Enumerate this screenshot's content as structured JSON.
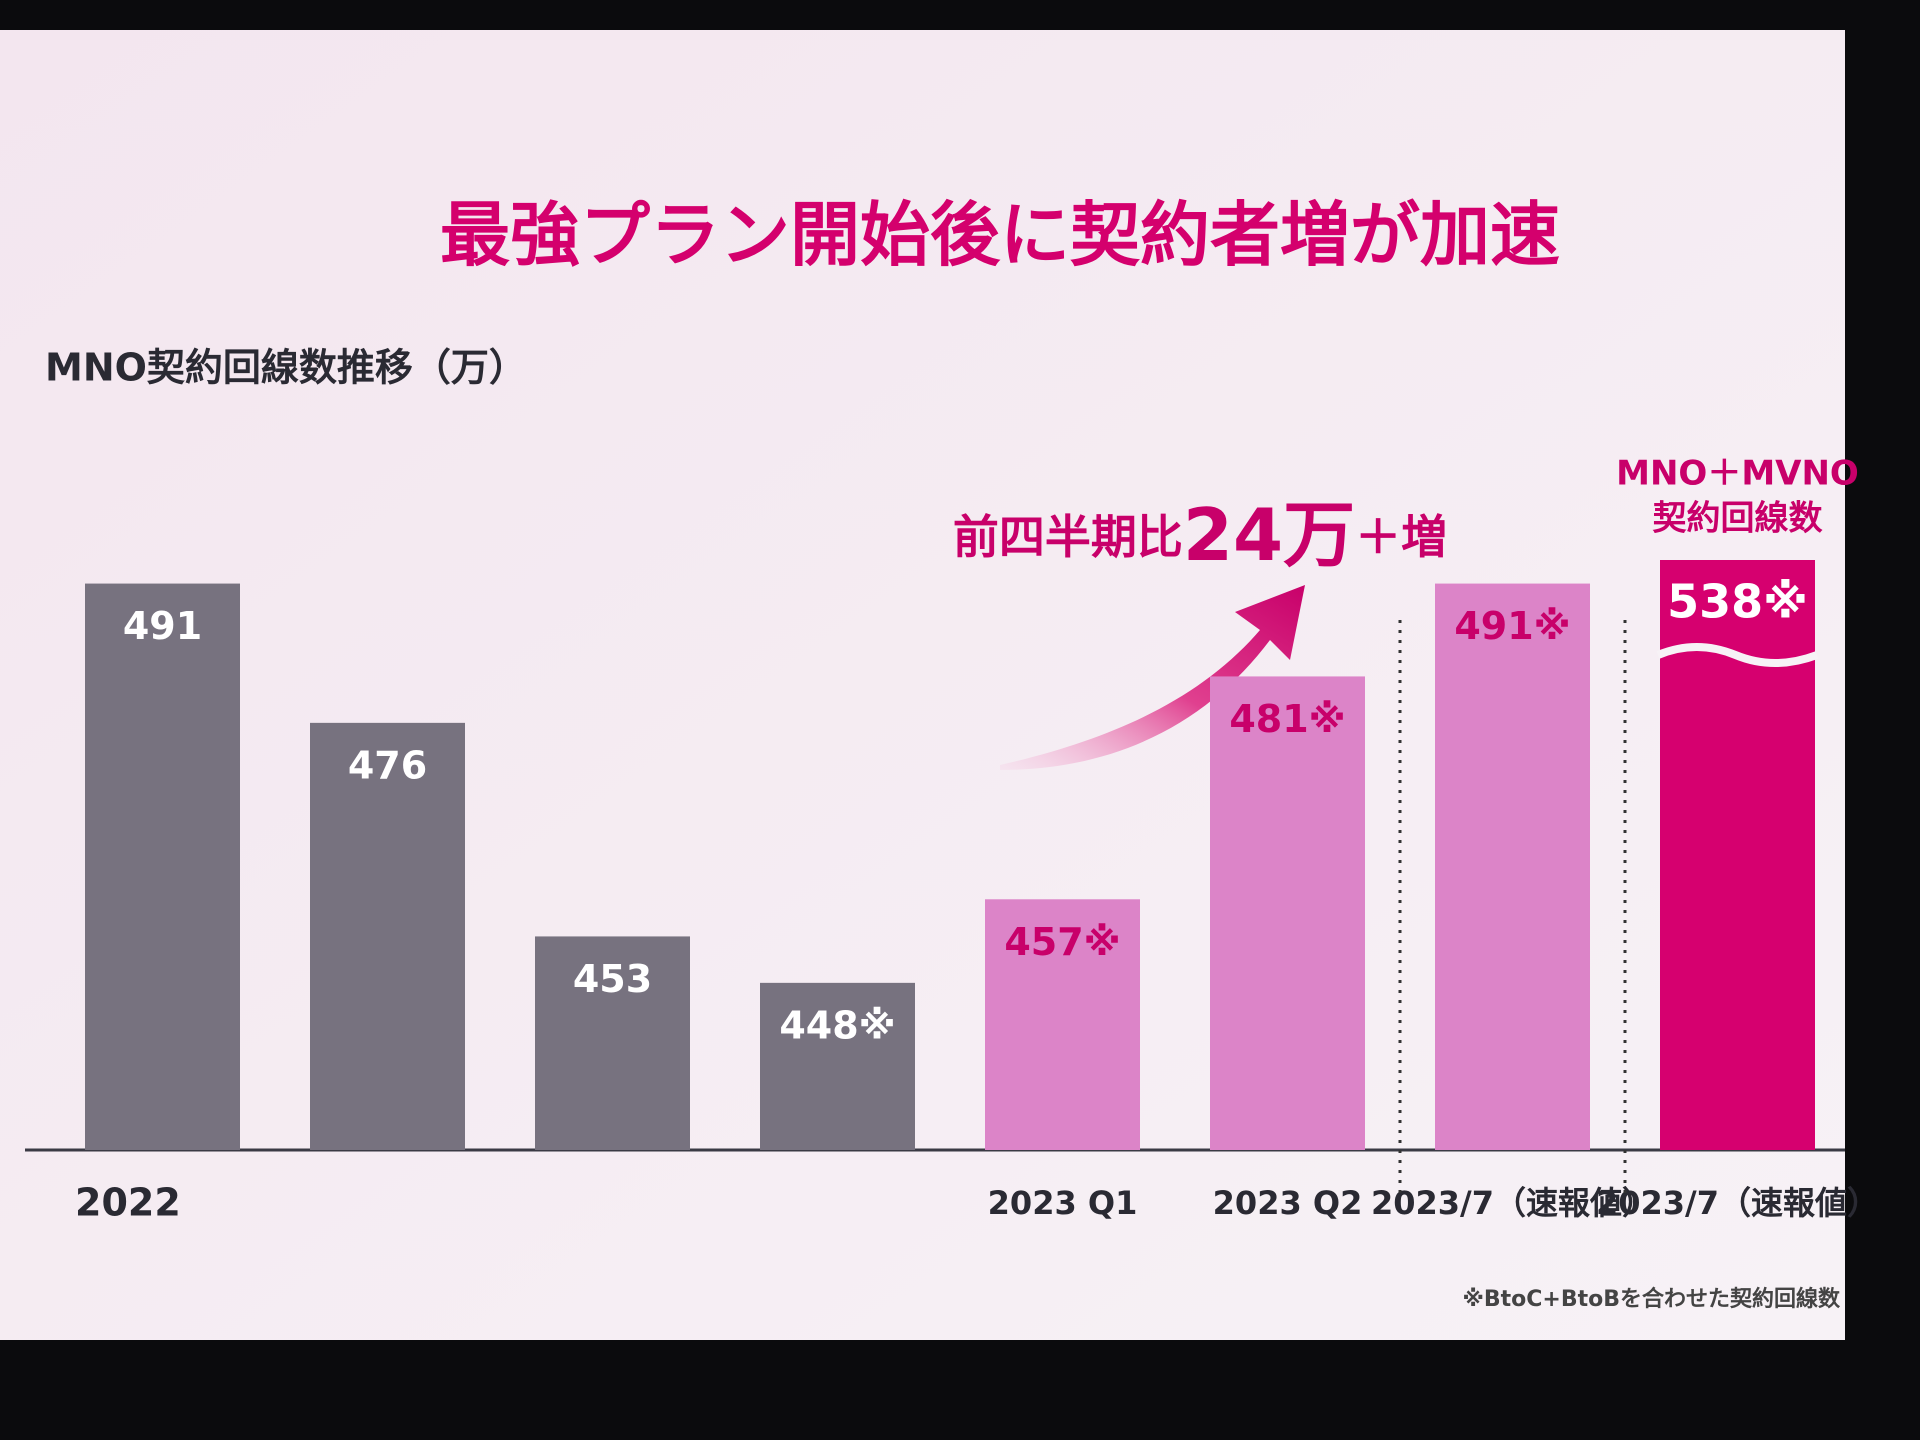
{
  "chart_data": {
    "type": "bar",
    "title": "最強プラン開始後に契約者増が加速",
    "subtitle": "MNO契約回線数推移（万）",
    "categories": [
      "2022",
      null,
      null,
      null,
      "2023 Q1",
      "2023 Q2",
      "2023/7（速報値）",
      "2023/7（速報値）"
    ],
    "values": [
      491,
      476,
      453,
      448,
      457,
      481,
      491,
      538
    ],
    "value_labels": [
      "491",
      "476",
      "453",
      "448※",
      "457※",
      "481※",
      "491※",
      "538※"
    ],
    "colors": [
      "#77727f",
      "#77727f",
      "#77727f",
      "#77727f",
      "#dc84c8",
      "#dc84c8",
      "#dc84c8",
      "#d6006f"
    ],
    "label_colors": [
      "#ffffff",
      "#ffffff",
      "#ffffff",
      "#ffffff",
      "#c8006a",
      "#c8006a",
      "#c8006a",
      "#ffffff"
    ],
    "ylim": [
      430,
      500
    ],
    "annotation": {
      "prefix": "前四半期比",
      "highlight": "24万",
      "suffix": "＋増"
    },
    "last_bar_header": [
      "MNO＋MVNO",
      "契約回線数"
    ],
    "footnote": "※BtoC+BtoBを合わせた契約回線数"
  }
}
